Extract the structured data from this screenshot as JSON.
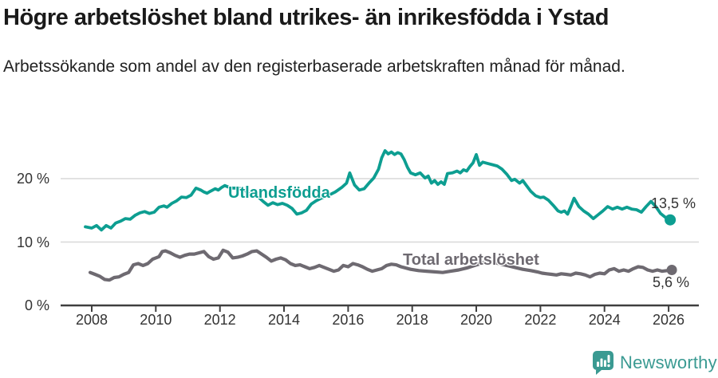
{
  "header": {
    "title": "Högre arbetslöshet bland utrikes- än inrikesfödda i Ystad",
    "subtitle": "Arbetssökande som andel av den registerbaserade arbetskraften månad för månad."
  },
  "footer": {
    "brand": "Newsworthy",
    "brand_color": "#3a9a92",
    "logo_icon": "speech-bubble-bar-chart-icon"
  },
  "chart_data": {
    "type": "line",
    "title": "Högre arbetslöshet bland utrikes- än inrikesfödda i Ystad",
    "subtitle": "Arbetssökande som andel av den registerbaserade arbetskraften månad för månad.",
    "xlabel": "",
    "ylabel": "",
    "grid": "horizontal",
    "grid_color": "#d8d8d8",
    "axis_color": "#3f3f3f",
    "tick_text_color": "#333333",
    "legend_position": "inline-annotations",
    "ylim": [
      0,
      26
    ],
    "xlim": [
      2007.7,
      2026.3
    ],
    "y_axis": {
      "ticks": [
        {
          "value": 0,
          "label": "0 %"
        },
        {
          "value": 10,
          "label": "10 %"
        },
        {
          "value": 20,
          "label": "20 %"
        }
      ]
    },
    "x_axis": {
      "ticks": [
        {
          "year": 2008,
          "label": "2008"
        },
        {
          "year": 2010,
          "label": "2010"
        },
        {
          "year": 2012,
          "label": "2012"
        },
        {
          "year": 2014,
          "label": "2014"
        },
        {
          "year": 2016,
          "label": "2016"
        },
        {
          "year": 2018,
          "label": "2018"
        },
        {
          "year": 2020,
          "label": "2020"
        },
        {
          "year": 2022,
          "label": "2022"
        },
        {
          "year": 2024,
          "label": "2024"
        },
        {
          "year": 2026,
          "label": "2026"
        }
      ]
    },
    "series": [
      {
        "name": "Utlandsfödda",
        "color": "#0d9e91",
        "end_label": "13,5 %",
        "end_value": 13.5,
        "points": [
          [
            2007.8,
            12.4
          ],
          [
            2008.0,
            12.2
          ],
          [
            2008.15,
            12.6
          ],
          [
            2008.3,
            11.9
          ],
          [
            2008.45,
            12.6
          ],
          [
            2008.6,
            12.2
          ],
          [
            2008.75,
            13.0
          ],
          [
            2008.9,
            13.3
          ],
          [
            2009.05,
            13.7
          ],
          [
            2009.2,
            13.6
          ],
          [
            2009.35,
            14.2
          ],
          [
            2009.5,
            14.6
          ],
          [
            2009.65,
            14.8
          ],
          [
            2009.8,
            14.5
          ],
          [
            2009.95,
            14.7
          ],
          [
            2010.1,
            15.5
          ],
          [
            2010.25,
            15.7
          ],
          [
            2010.35,
            15.5
          ],
          [
            2010.5,
            16.1
          ],
          [
            2010.65,
            16.5
          ],
          [
            2010.8,
            17.1
          ],
          [
            2010.95,
            17.0
          ],
          [
            2011.1,
            17.4
          ],
          [
            2011.25,
            18.5
          ],
          [
            2011.4,
            18.2
          ],
          [
            2011.5,
            17.9
          ],
          [
            2011.6,
            17.7
          ],
          [
            2011.7,
            18.0
          ],
          [
            2011.85,
            18.4
          ],
          [
            2011.95,
            18.2
          ],
          [
            2012.05,
            18.6
          ],
          [
            2012.15,
            18.9
          ],
          [
            2012.3,
            18.6
          ],
          [
            2012.4,
            18.5
          ],
          [
            2012.55,
            18.5
          ],
          [
            2012.7,
            18.4
          ],
          [
            2012.8,
            18.1
          ],
          [
            2012.9,
            17.6
          ],
          [
            2013.05,
            17.7
          ],
          [
            2013.2,
            17.1
          ],
          [
            2013.35,
            16.4
          ],
          [
            2013.5,
            15.8
          ],
          [
            2013.65,
            16.2
          ],
          [
            2013.8,
            15.9
          ],
          [
            2013.95,
            16.1
          ],
          [
            2014.1,
            15.8
          ],
          [
            2014.25,
            15.3
          ],
          [
            2014.4,
            14.4
          ],
          [
            2014.55,
            14.6
          ],
          [
            2014.7,
            15.0
          ],
          [
            2014.85,
            16.0
          ],
          [
            2015.0,
            16.5
          ],
          [
            2015.2,
            17.0
          ],
          [
            2015.4,
            17.4
          ],
          [
            2015.6,
            17.9
          ],
          [
            2015.8,
            18.6
          ],
          [
            2015.95,
            19.3
          ],
          [
            2016.05,
            20.9
          ],
          [
            2016.2,
            19.0
          ],
          [
            2016.35,
            18.2
          ],
          [
            2016.5,
            18.4
          ],
          [
            2016.65,
            19.3
          ],
          [
            2016.8,
            20.1
          ],
          [
            2016.95,
            21.5
          ],
          [
            2017.05,
            23.3
          ],
          [
            2017.15,
            24.4
          ],
          [
            2017.25,
            23.9
          ],
          [
            2017.35,
            24.2
          ],
          [
            2017.45,
            23.8
          ],
          [
            2017.55,
            24.1
          ],
          [
            2017.65,
            23.9
          ],
          [
            2017.75,
            23.0
          ],
          [
            2017.85,
            21.8
          ],
          [
            2017.95,
            20.9
          ],
          [
            2018.1,
            20.6
          ],
          [
            2018.25,
            20.9
          ],
          [
            2018.4,
            20.1
          ],
          [
            2018.5,
            20.4
          ],
          [
            2018.6,
            19.3
          ],
          [
            2018.7,
            19.7
          ],
          [
            2018.8,
            19.1
          ],
          [
            2018.9,
            19.5
          ],
          [
            2019.0,
            19.1
          ],
          [
            2019.1,
            20.8
          ],
          [
            2019.25,
            20.9
          ],
          [
            2019.4,
            21.2
          ],
          [
            2019.5,
            20.9
          ],
          [
            2019.6,
            21.4
          ],
          [
            2019.7,
            21.2
          ],
          [
            2019.8,
            21.9
          ],
          [
            2019.9,
            22.5
          ],
          [
            2020.0,
            23.8
          ],
          [
            2020.1,
            22.1
          ],
          [
            2020.2,
            22.6
          ],
          [
            2020.35,
            22.4
          ],
          [
            2020.5,
            22.2
          ],
          [
            2020.65,
            22.0
          ],
          [
            2020.8,
            21.5
          ],
          [
            2020.95,
            20.7
          ],
          [
            2021.1,
            19.7
          ],
          [
            2021.2,
            19.9
          ],
          [
            2021.35,
            19.3
          ],
          [
            2021.45,
            19.7
          ],
          [
            2021.55,
            19.0
          ],
          [
            2021.7,
            18.0
          ],
          [
            2021.85,
            17.3
          ],
          [
            2022.0,
            17.0
          ],
          [
            2022.1,
            17.1
          ],
          [
            2022.25,
            16.6
          ],
          [
            2022.4,
            15.8
          ],
          [
            2022.55,
            14.9
          ],
          [
            2022.65,
            14.7
          ],
          [
            2022.75,
            14.9
          ],
          [
            2022.85,
            14.4
          ],
          [
            2022.95,
            15.6
          ],
          [
            2023.05,
            16.9
          ],
          [
            2023.2,
            15.6
          ],
          [
            2023.35,
            14.9
          ],
          [
            2023.5,
            14.4
          ],
          [
            2023.65,
            13.7
          ],
          [
            2023.8,
            14.3
          ],
          [
            2023.95,
            14.9
          ],
          [
            2024.1,
            15.6
          ],
          [
            2024.25,
            15.2
          ],
          [
            2024.4,
            15.5
          ],
          [
            2024.55,
            15.2
          ],
          [
            2024.7,
            15.5
          ],
          [
            2024.85,
            15.2
          ],
          [
            2025.0,
            15.1
          ],
          [
            2025.15,
            14.7
          ],
          [
            2025.3,
            15.6
          ],
          [
            2025.45,
            16.4
          ],
          [
            2025.6,
            15.6
          ],
          [
            2025.75,
            14.5
          ],
          [
            2025.9,
            13.9
          ],
          [
            2026.05,
            13.5
          ]
        ]
      },
      {
        "name": "Total arbetslöshet",
        "color": "#6e6a71",
        "end_label": "5,6 %",
        "end_value": 5.6,
        "points": [
          [
            2007.95,
            5.2
          ],
          [
            2008.1,
            4.9
          ],
          [
            2008.25,
            4.6
          ],
          [
            2008.4,
            4.1
          ],
          [
            2008.55,
            4.0
          ],
          [
            2008.7,
            4.4
          ],
          [
            2008.85,
            4.5
          ],
          [
            2009.0,
            4.9
          ],
          [
            2009.15,
            5.2
          ],
          [
            2009.3,
            6.4
          ],
          [
            2009.45,
            6.6
          ],
          [
            2009.6,
            6.3
          ],
          [
            2009.75,
            6.6
          ],
          [
            2009.9,
            7.3
          ],
          [
            2010.0,
            7.5
          ],
          [
            2010.1,
            7.7
          ],
          [
            2010.2,
            8.5
          ],
          [
            2010.3,
            8.6
          ],
          [
            2010.45,
            8.3
          ],
          [
            2010.6,
            7.9
          ],
          [
            2010.75,
            7.6
          ],
          [
            2010.9,
            7.9
          ],
          [
            2011.05,
            8.1
          ],
          [
            2011.2,
            8.1
          ],
          [
            2011.35,
            8.3
          ],
          [
            2011.5,
            8.5
          ],
          [
            2011.65,
            7.7
          ],
          [
            2011.8,
            7.3
          ],
          [
            2011.95,
            7.5
          ],
          [
            2012.1,
            8.7
          ],
          [
            2012.25,
            8.4
          ],
          [
            2012.4,
            7.5
          ],
          [
            2012.55,
            7.6
          ],
          [
            2012.7,
            7.8
          ],
          [
            2012.85,
            8.1
          ],
          [
            2013.0,
            8.5
          ],
          [
            2013.15,
            8.6
          ],
          [
            2013.3,
            8.1
          ],
          [
            2013.45,
            7.6
          ],
          [
            2013.6,
            7.0
          ],
          [
            2013.75,
            7.3
          ],
          [
            2013.9,
            7.5
          ],
          [
            2014.05,
            7.2
          ],
          [
            2014.2,
            6.6
          ],
          [
            2014.35,
            6.3
          ],
          [
            2014.5,
            6.4
          ],
          [
            2014.65,
            6.1
          ],
          [
            2014.8,
            5.8
          ],
          [
            2014.95,
            6.0
          ],
          [
            2015.1,
            6.3
          ],
          [
            2015.25,
            6.0
          ],
          [
            2015.4,
            5.7
          ],
          [
            2015.55,
            5.4
          ],
          [
            2015.7,
            5.6
          ],
          [
            2015.85,
            6.3
          ],
          [
            2016.0,
            6.1
          ],
          [
            2016.15,
            6.6
          ],
          [
            2016.3,
            6.4
          ],
          [
            2016.45,
            6.1
          ],
          [
            2016.6,
            5.7
          ],
          [
            2016.75,
            5.4
          ],
          [
            2016.9,
            5.6
          ],
          [
            2017.05,
            5.8
          ],
          [
            2017.2,
            6.3
          ],
          [
            2017.35,
            6.5
          ],
          [
            2017.5,
            6.4
          ],
          [
            2017.65,
            6.1
          ],
          [
            2017.8,
            5.9
          ],
          [
            2017.95,
            5.7
          ],
          [
            2018.2,
            5.5
          ],
          [
            2018.45,
            5.4
          ],
          [
            2018.7,
            5.3
          ],
          [
            2018.95,
            5.2
          ],
          [
            2019.2,
            5.4
          ],
          [
            2019.45,
            5.6
          ],
          [
            2019.7,
            5.9
          ],
          [
            2019.95,
            6.3
          ],
          [
            2020.2,
            6.7
          ],
          [
            2020.45,
            6.9
          ],
          [
            2020.7,
            6.6
          ],
          [
            2020.95,
            6.3
          ],
          [
            2021.2,
            6.0
          ],
          [
            2021.45,
            5.7
          ],
          [
            2021.7,
            5.5
          ],
          [
            2021.9,
            5.3
          ],
          [
            2022.05,
            5.1
          ],
          [
            2022.2,
            5.0
          ],
          [
            2022.35,
            4.9
          ],
          [
            2022.5,
            4.8
          ],
          [
            2022.65,
            5.0
          ],
          [
            2022.8,
            4.9
          ],
          [
            2022.95,
            4.8
          ],
          [
            2023.1,
            5.1
          ],
          [
            2023.25,
            5.0
          ],
          [
            2023.4,
            4.8
          ],
          [
            2023.55,
            4.5
          ],
          [
            2023.7,
            4.9
          ],
          [
            2023.85,
            5.1
          ],
          [
            2024.0,
            5.0
          ],
          [
            2024.15,
            5.6
          ],
          [
            2024.3,
            5.8
          ],
          [
            2024.45,
            5.4
          ],
          [
            2024.6,
            5.6
          ],
          [
            2024.75,
            5.4
          ],
          [
            2024.9,
            5.8
          ],
          [
            2025.05,
            6.1
          ],
          [
            2025.2,
            6.0
          ],
          [
            2025.35,
            5.6
          ],
          [
            2025.5,
            5.4
          ],
          [
            2025.65,
            5.6
          ],
          [
            2025.8,
            5.4
          ],
          [
            2025.95,
            5.5
          ],
          [
            2026.1,
            5.6
          ]
        ]
      }
    ]
  }
}
